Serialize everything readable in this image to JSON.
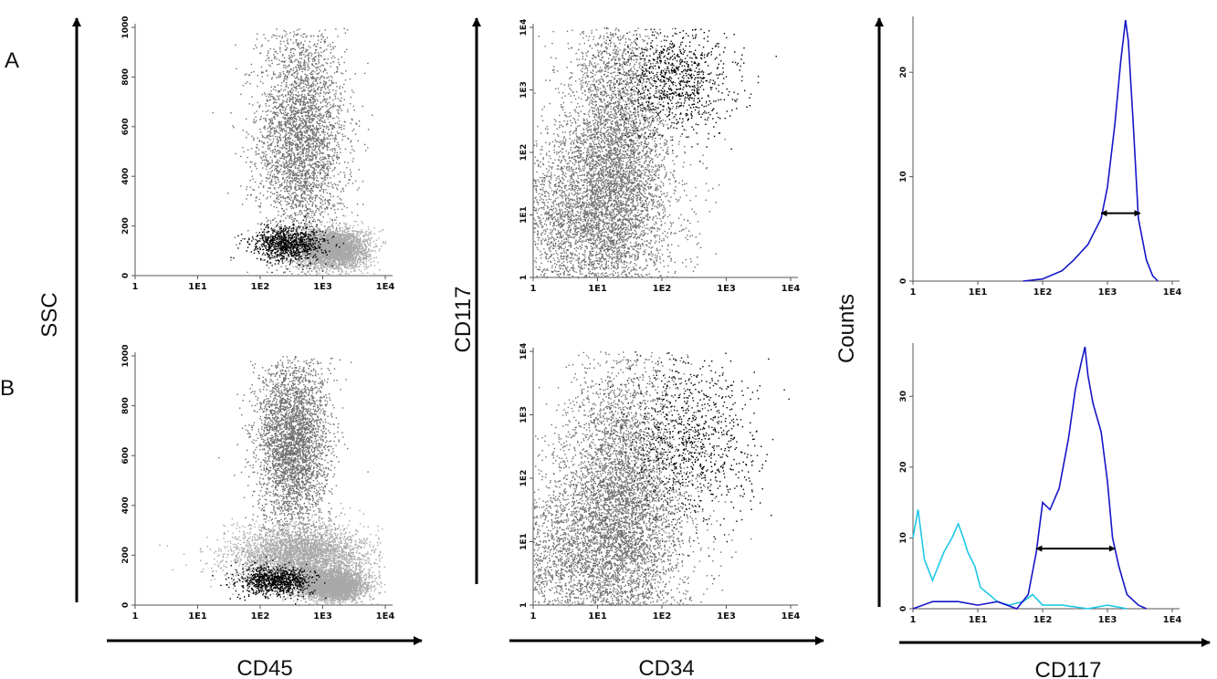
{
  "figure": {
    "row_labels": [
      "A",
      "B"
    ],
    "axis_titles": {
      "col1_y": "SSC",
      "col1_x": "CD45",
      "col2_y": "CD117",
      "col2_x": "CD34",
      "col3_y": "Counts",
      "col3_x": "CD117"
    },
    "colors": {
      "gray_dark": "#6e6e6e",
      "gray_light": "#a8a8a8",
      "black": "#000000",
      "blue": "#1515c8",
      "cyan": "#1ec8e6"
    }
  },
  "chart_data": [
    {
      "type": "scatter",
      "panel": "A-SSC-vs-CD45",
      "xlabel": "CD45",
      "ylabel": "SSC",
      "x_scale": "log",
      "xlim": [
        1,
        10000
      ],
      "ylim": [
        0,
        1000
      ],
      "x_ticks": [
        "1",
        "1E1",
        "1E2",
        "1E3",
        "1E4"
      ],
      "y_ticks": [
        "0",
        "200",
        "400",
        "600",
        "800",
        "1000"
      ],
      "series": [
        {
          "color": "#6e6e6e",
          "clusters": [
            {
              "x": 450,
              "y": 550,
              "sx": 0.16,
              "sy": 230
            }
          ]
        },
        {
          "color": "#a8a8a8",
          "clusters": [
            {
              "x": 1400,
              "y": 110,
              "sx": 0.13,
              "sy": 40
            }
          ]
        },
        {
          "color": "#000000",
          "clusters": [
            {
              "x": 280,
              "y": 130,
              "sx": 0.13,
              "sy": 35
            }
          ]
        }
      ]
    },
    {
      "type": "scatter",
      "panel": "A-CD117-vs-CD34",
      "xlabel": "CD34",
      "ylabel": "CD117",
      "x_scale": "log",
      "y_scale": "log",
      "xlim": [
        1,
        10000
      ],
      "ylim": [
        1,
        10000
      ],
      "x_ticks": [
        "1",
        "1E1",
        "1E2",
        "1E3",
        "1E4"
      ],
      "y_ticks": [
        "1",
        "1E1",
        "1E2",
        "1E3",
        "1E4"
      ],
      "series": [
        {
          "color": "#6e6e6e",
          "clusters": [
            {
              "x": 7,
              "y": 8,
              "sx": 0.3,
              "sy": 0.35
            },
            {
              "x": 20,
              "y": 150,
              "sx": 0.18,
              "sy": 0.5
            }
          ]
        },
        {
          "color": "#000000",
          "clusters": [
            {
              "x": 180,
              "y": 1500,
              "sx": 0.2,
              "sy": 0.2
            }
          ]
        }
      ]
    },
    {
      "type": "line",
      "panel": "A-Counts-vs-CD117",
      "xlabel": "CD117",
      "ylabel": "Counts",
      "x_scale": "log",
      "xlim": [
        1,
        10000
      ],
      "ylim": [
        0,
        25
      ],
      "x_ticks": [
        "1",
        "1E1",
        "1E2",
        "1E3",
        "1E4"
      ],
      "y_ticks": [
        "0",
        "10",
        "20"
      ],
      "series": [
        {
          "color": "#1515c8",
          "x": [
            50,
            100,
            200,
            300,
            500,
            800,
            1000,
            1300,
            1600,
            1900,
            2100,
            2500,
            3000,
            4000,
            5000,
            6000
          ],
          "y": [
            0,
            0.2,
            1,
            2,
            3.5,
            6,
            9,
            15,
            21,
            25,
            23,
            15,
            6,
            2,
            0.5,
            0
          ]
        }
      ],
      "annotations": [
        {
          "type": "double-arrow",
          "x_from": 800,
          "x_to": 3200,
          "y": 6.5
        }
      ]
    },
    {
      "type": "scatter",
      "panel": "B-SSC-vs-CD45",
      "xlabel": "CD45",
      "ylabel": "SSC",
      "x_scale": "log",
      "xlim": [
        1,
        10000
      ],
      "ylim": [
        0,
        1000
      ],
      "x_ticks": [
        "1",
        "1E1",
        "1E2",
        "1E3",
        "1E4"
      ],
      "y_ticks": [
        "0",
        "200",
        "400",
        "600",
        "800",
        "1000"
      ],
      "series": [
        {
          "color": "#6e6e6e",
          "clusters": [
            {
              "x": 320,
              "y": 650,
              "sx": 0.13,
              "sy": 180
            }
          ]
        },
        {
          "color": "#a8a8a8",
          "clusters": [
            {
              "x": 1400,
              "y": 80,
              "sx": 0.12,
              "sy": 30
            },
            {
              "x": 450,
              "y": 200,
              "sx": 0.25,
              "sy": 60
            }
          ]
        },
        {
          "color": "#000000",
          "clusters": [
            {
              "x": 170,
              "y": 100,
              "sx": 0.13,
              "sy": 30
            }
          ]
        }
      ]
    },
    {
      "type": "scatter",
      "panel": "B-CD117-vs-CD34",
      "xlabel": "CD34",
      "ylabel": "CD117",
      "x_scale": "log",
      "y_scale": "log",
      "xlim": [
        1,
        10000
      ],
      "ylim": [
        1,
        10000
      ],
      "x_ticks": [
        "1",
        "1E1",
        "1E2",
        "1E3",
        "1E4"
      ],
      "y_ticks": [
        "1",
        "1E1",
        "1E2",
        "1E3",
        "1E4"
      ],
      "series": [
        {
          "color": "#6e6e6e",
          "clusters": [
            {
              "x": 8,
              "y": 6,
              "sx": 0.35,
              "sy": 0.35
            },
            {
              "x": 25,
              "y": 80,
              "sx": 0.2,
              "sy": 0.45
            }
          ]
        },
        {
          "color": "#000000",
          "clusters": [
            {
              "x": 300,
              "y": 400,
              "sx": 0.22,
              "sy": 0.3
            }
          ]
        }
      ]
    },
    {
      "type": "line",
      "panel": "B-Counts-vs-CD117",
      "xlabel": "CD117",
      "ylabel": "Counts",
      "x_scale": "log",
      "xlim": [
        1,
        10000
      ],
      "ylim": [
        0,
        37
      ],
      "x_ticks": [
        "1",
        "1E1",
        "1E2",
        "1E3",
        "1E4"
      ],
      "y_ticks": [
        "0",
        "10",
        "20",
        "30"
      ],
      "series": [
        {
          "color": "#1ec8e6",
          "x": [
            1,
            1.2,
            1.5,
            2,
            3,
            4,
            5,
            6,
            7,
            9,
            11,
            15,
            20,
            30,
            50,
            70,
            100,
            200,
            500,
            1000,
            2000
          ],
          "y": [
            10,
            14,
            7,
            4,
            8,
            10,
            12,
            10,
            8,
            6,
            3,
            2,
            1,
            0.5,
            1,
            2,
            0.5,
            0.5,
            0,
            0.5,
            0
          ]
        },
        {
          "color": "#1515c8",
          "x": [
            1,
            2,
            5,
            10,
            20,
            40,
            60,
            80,
            100,
            130,
            180,
            250,
            320,
            400,
            450,
            500,
            600,
            800,
            1000,
            1200,
            1500,
            2000,
            3000,
            4000
          ],
          "y": [
            0,
            1,
            1,
            0.5,
            1,
            0,
            2,
            8,
            15,
            14,
            17,
            24,
            31,
            35,
            37,
            33,
            29,
            25,
            18,
            10,
            6,
            2,
            0.5,
            0
          ]
        }
      ],
      "annotations": [
        {
          "type": "double-arrow",
          "x_from": 80,
          "x_to": 1300,
          "y": 8.5
        }
      ]
    }
  ]
}
